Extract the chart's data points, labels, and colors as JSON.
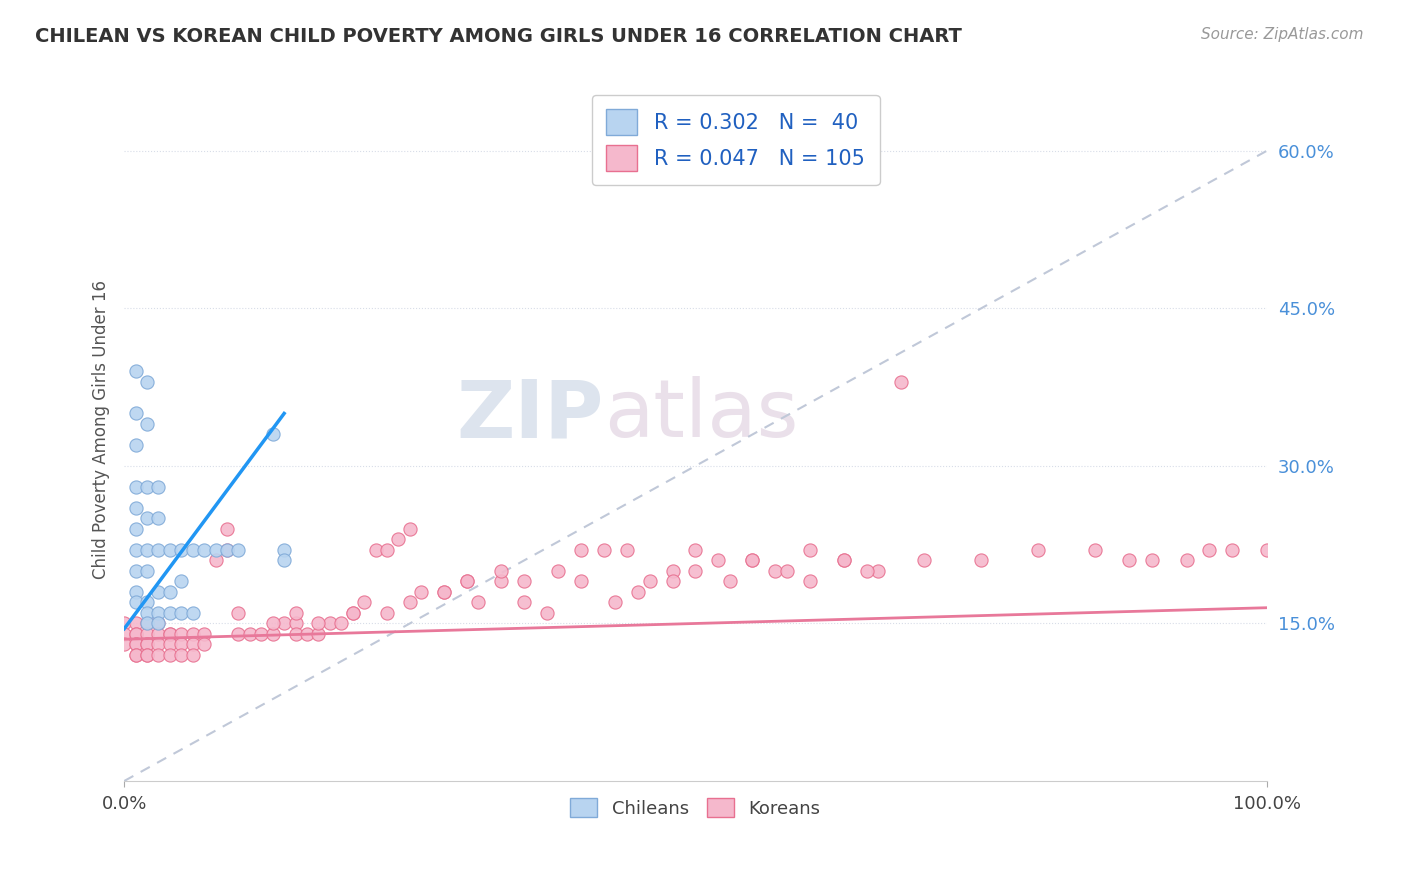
{
  "title": "CHILEAN VS KOREAN CHILD POVERTY AMONG GIRLS UNDER 16 CORRELATION CHART",
  "source": "Source: ZipAtlas.com",
  "ylabel": "Child Poverty Among Girls Under 16",
  "xlim": [
    0.0,
    1.0
  ],
  "ylim": [
    0.0,
    0.67
  ],
  "yticks": [
    0.15,
    0.3,
    0.45,
    0.6
  ],
  "ytick_labels": [
    "15.0%",
    "30.0%",
    "45.0%",
    "60.0%"
  ],
  "xticks": [
    0.0,
    1.0
  ],
  "xtick_labels": [
    "0.0%",
    "100.0%"
  ],
  "chilean_color": "#b8d4f0",
  "korean_color": "#f5b8cc",
  "chilean_edge": "#80aad8",
  "korean_edge": "#e87090",
  "trend_chilean_color": "#2196F3",
  "trend_korean_color": "#e8789a",
  "ref_line_color": "#c0c8d8",
  "watermark_zip": "ZIP",
  "watermark_atlas": "atlas",
  "chilean_x": [
    0.01,
    0.01,
    0.01,
    0.01,
    0.01,
    0.01,
    0.01,
    0.01,
    0.01,
    0.01,
    0.02,
    0.02,
    0.02,
    0.02,
    0.02,
    0.02,
    0.02,
    0.02,
    0.02,
    0.03,
    0.03,
    0.03,
    0.03,
    0.03,
    0.03,
    0.04,
    0.04,
    0.04,
    0.05,
    0.05,
    0.05,
    0.06,
    0.06,
    0.07,
    0.08,
    0.09,
    0.1,
    0.13,
    0.14,
    0.14
  ],
  "chilean_y": [
    0.39,
    0.35,
    0.32,
    0.28,
    0.26,
    0.24,
    0.22,
    0.2,
    0.18,
    0.17,
    0.38,
    0.34,
    0.28,
    0.25,
    0.22,
    0.2,
    0.17,
    0.16,
    0.15,
    0.28,
    0.25,
    0.22,
    0.18,
    0.16,
    0.15,
    0.22,
    0.18,
    0.16,
    0.22,
    0.19,
    0.16,
    0.22,
    0.16,
    0.22,
    0.22,
    0.22,
    0.22,
    0.33,
    0.22,
    0.21
  ],
  "korean_x": [
    0.0,
    0.0,
    0.0,
    0.01,
    0.01,
    0.01,
    0.01,
    0.01,
    0.01,
    0.01,
    0.02,
    0.02,
    0.02,
    0.02,
    0.02,
    0.02,
    0.03,
    0.03,
    0.03,
    0.03,
    0.04,
    0.04,
    0.04,
    0.04,
    0.05,
    0.05,
    0.05,
    0.06,
    0.06,
    0.06,
    0.07,
    0.07,
    0.08,
    0.09,
    0.09,
    0.1,
    0.11,
    0.12,
    0.13,
    0.14,
    0.15,
    0.15,
    0.16,
    0.17,
    0.18,
    0.19,
    0.2,
    0.21,
    0.22,
    0.23,
    0.24,
    0.25,
    0.26,
    0.28,
    0.3,
    0.31,
    0.33,
    0.35,
    0.37,
    0.4,
    0.42,
    0.44,
    0.46,
    0.48,
    0.5,
    0.52,
    0.55,
    0.57,
    0.6,
    0.63,
    0.66,
    0.7,
    0.75,
    0.8,
    0.85,
    0.88,
    0.9,
    0.93,
    0.95,
    0.97,
    1.0,
    0.1,
    0.13,
    0.15,
    0.17,
    0.2,
    0.23,
    0.25,
    0.28,
    0.3,
    0.33,
    0.35,
    0.38,
    0.4,
    0.43,
    0.45,
    0.48,
    0.5,
    0.53,
    0.55,
    0.58,
    0.6,
    0.63,
    0.65,
    0.68
  ],
  "korean_y": [
    0.15,
    0.14,
    0.13,
    0.15,
    0.14,
    0.14,
    0.13,
    0.13,
    0.12,
    0.12,
    0.15,
    0.14,
    0.13,
    0.13,
    0.12,
    0.12,
    0.15,
    0.14,
    0.13,
    0.12,
    0.14,
    0.14,
    0.13,
    0.12,
    0.14,
    0.13,
    0.12,
    0.14,
    0.13,
    0.12,
    0.14,
    0.13,
    0.21,
    0.24,
    0.22,
    0.14,
    0.14,
    0.14,
    0.14,
    0.15,
    0.15,
    0.14,
    0.14,
    0.14,
    0.15,
    0.15,
    0.16,
    0.17,
    0.22,
    0.22,
    0.23,
    0.24,
    0.18,
    0.18,
    0.19,
    0.17,
    0.19,
    0.17,
    0.16,
    0.22,
    0.22,
    0.22,
    0.19,
    0.2,
    0.22,
    0.21,
    0.21,
    0.2,
    0.22,
    0.21,
    0.2,
    0.21,
    0.21,
    0.22,
    0.22,
    0.21,
    0.21,
    0.21,
    0.22,
    0.22,
    0.22,
    0.16,
    0.15,
    0.16,
    0.15,
    0.16,
    0.16,
    0.17,
    0.18,
    0.19,
    0.2,
    0.19,
    0.2,
    0.19,
    0.17,
    0.18,
    0.19,
    0.2,
    0.19,
    0.21,
    0.2,
    0.19,
    0.21,
    0.2,
    0.38
  ]
}
